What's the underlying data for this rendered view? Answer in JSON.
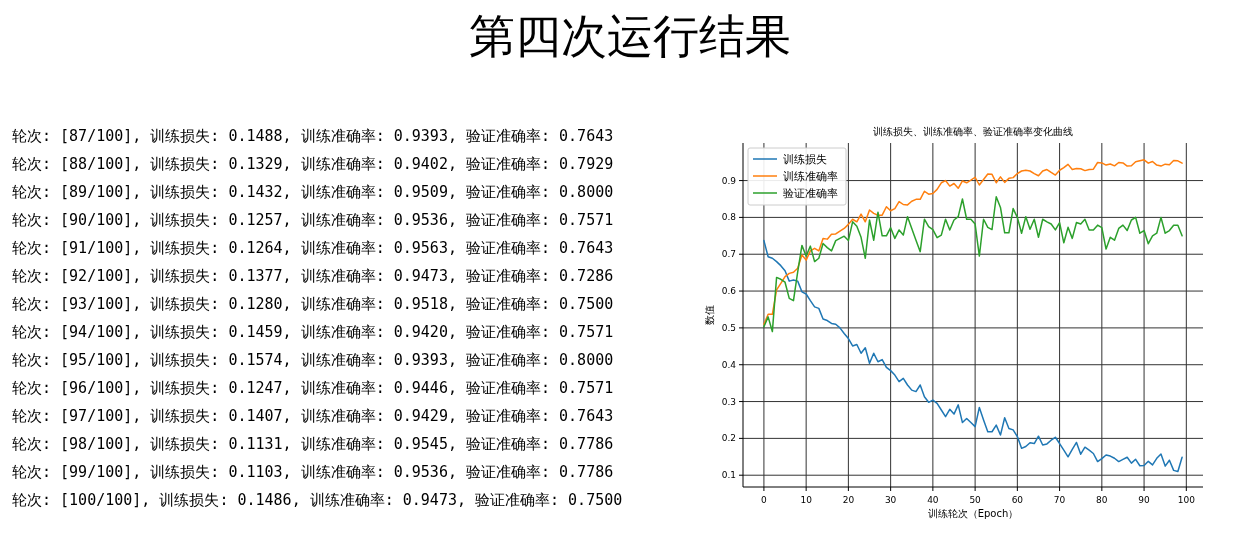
{
  "chart_data": {
    "type": "line",
    "title": "第四次运行结果",
    "subtitle": "训练损失、训练准确率、验证准确率变化曲线",
    "xlabel": "训练轮次（Epoch）",
    "ylabel": "数值",
    "annotations": [
      "轮次: [87/100], 训练损失: 0.1488, 训练准确率: 0.9393, 验证准确率: 0.7643",
      "轮次: [88/100], 训练损失: 0.1329, 训练准确率: 0.9402, 验证准确率: 0.7929",
      "轮次: [89/100], 训练损失: 0.1432, 训练准确率: 0.9509, 验证准确率: 0.8000",
      "轮次: [90/100], 训练损失: 0.1257, 训练准确率: 0.9536, 验证准确率: 0.7571",
      "轮次: [91/100], 训练损失: 0.1264, 训练准确率: 0.9563, 验证准确率: 0.7643",
      "轮次: [92/100], 训练损失: 0.1377, 训练准确率: 0.9473, 验证准确率: 0.7286",
      "轮次: [93/100], 训练损失: 0.1280, 训练准确率: 0.9518, 验证准确率: 0.7500",
      "轮次: [94/100], 训练损失: 0.1459, 训练准确率: 0.9420, 验证准确率: 0.7571",
      "轮次: [95/100], 训练损失: 0.1574, 训练准确率: 0.9393, 验证准确率: 0.8000",
      "轮次: [96/100], 训练损失: 0.1247, 训练准确率: 0.9446, 验证准确率: 0.7571",
      "轮次: [97/100], 训练损失: 0.1407, 训练准确率: 0.9429, 验证准确率: 0.7643",
      "轮次: [98/100], 训练损失: 0.1131, 训练准确率: 0.9545, 验证准确率: 0.7786",
      "轮次: [99/100], 训练损失: 0.1103, 训练准确率: 0.9536, 验证准确率: 0.7786",
      "轮次: [100/100], 训练损失: 0.1486, 训练准确率: 0.9473, 验证准确率: 0.7500"
    ],
    "x": [
      0,
      1,
      2,
      3,
      4,
      5,
      6,
      7,
      8,
      9,
      10,
      11,
      12,
      13,
      14,
      15,
      16,
      17,
      18,
      19,
      20,
      21,
      22,
      23,
      24,
      25,
      26,
      27,
      28,
      29,
      30,
      31,
      32,
      33,
      34,
      35,
      36,
      37,
      38,
      39,
      40,
      41,
      42,
      43,
      44,
      45,
      46,
      47,
      48,
      49,
      50,
      51,
      52,
      53,
      54,
      55,
      56,
      57,
      58,
      59,
      60,
      61,
      62,
      63,
      64,
      65,
      66,
      67,
      68,
      69,
      70,
      71,
      72,
      73,
      74,
      75,
      76,
      77,
      78,
      79,
      80,
      81,
      82,
      83,
      84,
      85,
      86,
      87,
      88,
      89,
      90,
      91,
      92,
      93,
      94,
      95,
      96,
      97,
      98,
      99
    ],
    "series": [
      {
        "name": "训练损失",
        "color": "#1f77b4",
        "values": [
          0.737,
          0.693,
          0.689,
          0.68,
          0.669,
          0.655,
          0.627,
          0.63,
          0.627,
          0.598,
          0.592,
          0.574,
          0.557,
          0.553,
          0.524,
          0.52,
          0.512,
          0.51,
          0.5,
          0.485,
          0.471,
          0.451,
          0.455,
          0.431,
          0.446,
          0.404,
          0.431,
          0.408,
          0.414,
          0.393,
          0.384,
          0.372,
          0.354,
          0.363,
          0.345,
          0.331,
          0.327,
          0.345,
          0.313,
          0.298,
          0.304,
          0.295,
          0.277,
          0.259,
          0.279,
          0.266,
          0.291,
          0.243,
          0.254,
          0.243,
          0.232,
          0.284,
          0.25,
          0.218,
          0.218,
          0.236,
          0.209,
          0.256,
          0.227,
          0.223,
          0.205,
          0.173,
          0.178,
          0.188,
          0.186,
          0.206,
          0.182,
          0.185,
          0.195,
          0.203,
          0.186,
          0.168,
          0.15,
          0.17,
          0.189,
          0.157,
          0.176,
          0.168,
          0.159,
          0.137,
          0.145,
          0.155,
          0.152,
          0.146,
          0.137,
          0.143,
          0.1488,
          0.1329,
          0.1432,
          0.1257,
          0.1264,
          0.1377,
          0.128,
          0.1459,
          0.1574,
          0.1247,
          0.1407,
          0.1131,
          0.1103,
          0.1486
        ]
      },
      {
        "name": "训练准确率",
        "color": "#ff7f0e",
        "values": [
          0.51,
          0.537,
          0.537,
          0.603,
          0.621,
          0.639,
          0.648,
          0.651,
          0.662,
          0.698,
          0.684,
          0.709,
          0.716,
          0.709,
          0.743,
          0.741,
          0.754,
          0.755,
          0.763,
          0.77,
          0.781,
          0.795,
          0.788,
          0.809,
          0.788,
          0.82,
          0.811,
          0.806,
          0.806,
          0.829,
          0.818,
          0.824,
          0.843,
          0.835,
          0.834,
          0.844,
          0.849,
          0.849,
          0.871,
          0.863,
          0.865,
          0.876,
          0.894,
          0.9,
          0.885,
          0.892,
          0.879,
          0.899,
          0.894,
          0.901,
          0.909,
          0.888,
          0.903,
          0.918,
          0.917,
          0.894,
          0.91,
          0.895,
          0.906,
          0.908,
          0.919,
          0.926,
          0.928,
          0.926,
          0.919,
          0.913,
          0.926,
          0.93,
          0.922,
          0.915,
          0.928,
          0.935,
          0.944,
          0.93,
          0.933,
          0.932,
          0.927,
          0.93,
          0.931,
          0.949,
          0.948,
          0.942,
          0.945,
          0.94,
          0.949,
          0.948,
          0.9393,
          0.9402,
          0.9509,
          0.9536,
          0.9563,
          0.9473,
          0.9518,
          0.942,
          0.9393,
          0.9446,
          0.9429,
          0.9545,
          0.9536,
          0.9473
        ]
      },
      {
        "name": "验证准确率",
        "color": "#2ca02c",
        "values": [
          0.503,
          0.53,
          0.49,
          0.637,
          0.632,
          0.624,
          0.58,
          0.574,
          0.652,
          0.724,
          0.695,
          0.722,
          0.68,
          0.689,
          0.729,
          0.718,
          0.709,
          0.737,
          0.743,
          0.749,
          0.737,
          0.788,
          0.776,
          0.746,
          0.689,
          0.793,
          0.738,
          0.814,
          0.75,
          0.75,
          0.772,
          0.743,
          0.766,
          0.752,
          0.802,
          0.77,
          0.738,
          0.707,
          0.795,
          0.775,
          0.767,
          0.745,
          0.752,
          0.795,
          0.766,
          0.793,
          0.802,
          0.85,
          0.795,
          0.795,
          0.782,
          0.695,
          0.795,
          0.773,
          0.767,
          0.856,
          0.827,
          0.758,
          0.758,
          0.824,
          0.8,
          0.757,
          0.802,
          0.768,
          0.795,
          0.746,
          0.795,
          0.788,
          0.782,
          0.766,
          0.786,
          0.731,
          0.773,
          0.743,
          0.786,
          0.782,
          0.795,
          0.766,
          0.766,
          0.779,
          0.772,
          0.714,
          0.746,
          0.738,
          0.77,
          0.779,
          0.7643,
          0.7929,
          0.8,
          0.7571,
          0.7643,
          0.7286,
          0.75,
          0.7571,
          0.8,
          0.7571,
          0.7643,
          0.7786,
          0.7786,
          0.75
        ]
      }
    ],
    "xlim": [
      -4.95,
      103.95
    ],
    "ylim": [
      0.068,
      1.002
    ],
    "xticks": [
      0,
      10,
      20,
      30,
      40,
      50,
      60,
      70,
      80,
      90,
      100
    ],
    "yticks": [
      0.1,
      0.2,
      0.3,
      0.4,
      0.5,
      0.6,
      0.7,
      0.8,
      0.9
    ],
    "grid": true,
    "legend": "top left"
  }
}
